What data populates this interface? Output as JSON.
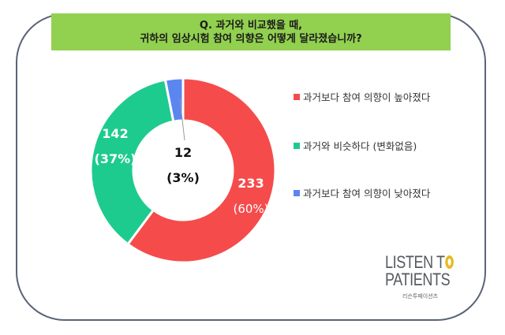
{
  "header": {
    "line1": "Q. 과거와 비교했을 때,",
    "line2": "귀하의 임상시험 참여 의향은 어떻게 달라졌습니까?"
  },
  "colors": {
    "banner": "#92d050",
    "border": "#5a6378",
    "higher": "#f54b4b",
    "same": "#1ecb8f",
    "lower": "#5b86f0"
  },
  "chart_data": {
    "type": "pie",
    "subtype": "donut",
    "title": "Q. 과거와 비교했을 때, 귀하의 임상시험 참여 의향은 어떻게 달라졌습니까?",
    "categories": [
      "과거보다 참여 의향이 높아졌다",
      "과거와 비슷하다 (변화없음)",
      "과거보다 참여 의향이 낮아졌다"
    ],
    "values": [
      233,
      142,
      12
    ],
    "percentages": [
      60,
      37,
      3
    ],
    "labels": [
      {
        "value": "233",
        "percent": "(60%)"
      },
      {
        "value": "142",
        "percent": "(37%)"
      },
      {
        "value": "12",
        "percent": "(3%)"
      }
    ],
    "legend_position": "right"
  },
  "legend": [
    {
      "label": "과거보다 참여 의향이 높아졌다",
      "color": "#f54b4b"
    },
    {
      "label": "과거와 비슷하다 (변화없음)",
      "color": "#1ecb8f"
    },
    {
      "label": "과거보다 참여 의향이 낮아졌다",
      "color": "#5b86f0"
    }
  ],
  "logo": {
    "line1": "LISTEN T",
    "line2": "PATIENTS",
    "korean": "리슨투페이션츠"
  }
}
